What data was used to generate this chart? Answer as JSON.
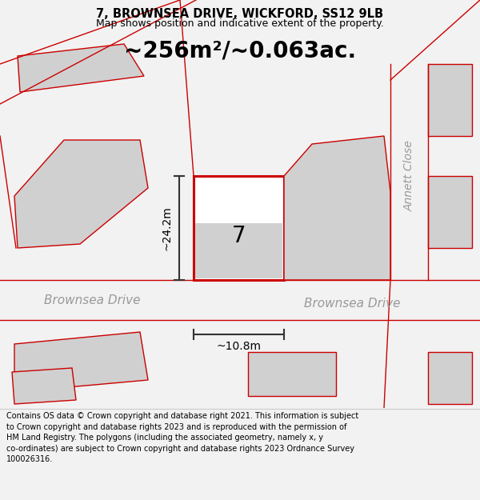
{
  "title_line1": "7, BROWNSEA DRIVE, WICKFORD, SS12 9LB",
  "title_line2": "Map shows position and indicative extent of the property.",
  "area_text": "~256m²/~0.063ac.",
  "width_label": "~10.8m",
  "height_label": "~24.2m",
  "plot_number": "7",
  "road_label_left": "Brownsea Drive",
  "road_label_right": "Brownsea Drive",
  "close_label": "Annett Close",
  "footer_text": "Contains OS data © Crown copyright and database right 2021. This information is subject to Crown copyright and database rights 2023 and is reproduced with the permission of HM Land Registry. The polygons (including the associated geometry, namely x, y co-ordinates) are subject to Crown copyright and database rights 2023 Ordnance Survey 100026316.",
  "bg_color": "#f2f2f2",
  "map_bg": "#ffffff",
  "plot_fill": "#ffffff",
  "plot_border": "#cc0000",
  "neighbor_fill": "#d0d0d0",
  "neighbor_border_color": "#cc0000",
  "road_line_color": "#cc0000",
  "text_color": "#000000",
  "road_text_color": "#999999",
  "footer_bg": "#ffffff",
  "dim_line_color": "#333333"
}
